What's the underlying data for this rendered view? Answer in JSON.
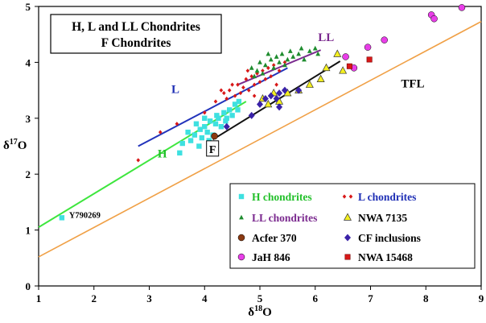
{
  "chart_data": {
    "type": "scatter",
    "title_lines": [
      "H, L and LL Chondrites",
      "F Chondrites"
    ],
    "xlabel": "δ18O",
    "ylabel": "δ17O",
    "xlim": [
      1,
      9
    ],
    "ylim": [
      0,
      5
    ],
    "xticks": [
      1,
      2,
      3,
      4,
      5,
      6,
      7,
      8,
      9
    ],
    "yticks": [
      0,
      1,
      2,
      3,
      4,
      5
    ],
    "grid": false,
    "legend_position": "bottom-right",
    "annotations": [
      {
        "text": "TFL",
        "x": 7.55,
        "y": 3.55,
        "color": "#000000"
      },
      {
        "text": "LL",
        "x": 6.05,
        "y": 4.38,
        "color": "#7b2a8f"
      },
      {
        "text": "L",
        "x": 3.4,
        "y": 3.45,
        "color": "#1f2fb5"
      },
      {
        "text": "H",
        "x": 3.15,
        "y": 2.3,
        "color": "#22c02a"
      },
      {
        "text": "Y790269",
        "x": 1.55,
        "y": 1.22,
        "color": "#000000"
      }
    ],
    "f_label": {
      "text": "F",
      "x": 4.05,
      "y": 2.38
    },
    "lines": [
      {
        "name": "TFL",
        "color": "#f0a046",
        "x": [
          1,
          9
        ],
        "y": [
          0.52,
          4.73
        ]
      },
      {
        "name": "H trend",
        "color": "#3ee63e",
        "x": [
          1,
          4.75
        ],
        "y": [
          1.05,
          3.3
        ]
      },
      {
        "name": "L trend",
        "color": "#2233bb",
        "x": [
          2.8,
          5.5
        ],
        "y": [
          2.5,
          3.9
        ]
      },
      {
        "name": "LL trend",
        "color": "#7b2a8f",
        "x": [
          4.6,
          6.1
        ],
        "y": [
          3.6,
          4.22
        ]
      },
      {
        "name": "F trend",
        "color": "#111111",
        "x": [
          4.15,
          6.45
        ],
        "y": [
          2.62,
          4.02
        ]
      }
    ],
    "series": [
      {
        "name": "H chondrites",
        "marker": "square",
        "color": "#3ee0e0",
        "points": [
          [
            1.42,
            1.22
          ],
          [
            3.55,
            2.38
          ],
          [
            3.6,
            2.55
          ],
          [
            3.75,
            2.6
          ],
          [
            3.82,
            2.7
          ],
          [
            3.9,
            2.5
          ],
          [
            3.92,
            2.8
          ],
          [
            3.95,
            2.65
          ],
          [
            4.0,
            2.85
          ],
          [
            4.05,
            2.75
          ],
          [
            4.1,
            2.95
          ],
          [
            4.15,
            2.7
          ],
          [
            4.2,
            2.9
          ],
          [
            4.25,
            3.0
          ],
          [
            4.3,
            2.85
          ],
          [
            4.35,
            3.1
          ],
          [
            4.4,
            3.0
          ],
          [
            4.45,
            3.15
          ],
          [
            4.5,
            3.05
          ],
          [
            4.55,
            3.25
          ],
          [
            4.6,
            3.15
          ],
          [
            4.62,
            3.3
          ],
          [
            3.7,
            2.75
          ],
          [
            3.85,
            2.9
          ],
          [
            4.0,
            3.0
          ],
          [
            4.08,
            2.6
          ],
          [
            4.22,
            3.05
          ],
          [
            4.38,
            2.95
          ]
        ]
      },
      {
        "name": "L chondrites",
        "marker": "diamond-small",
        "color": "#d81818",
        "points": [
          [
            2.8,
            2.25
          ],
          [
            3.2,
            2.75
          ],
          [
            3.5,
            2.9
          ],
          [
            4.0,
            3.1
          ],
          [
            4.2,
            3.3
          ],
          [
            4.35,
            3.45
          ],
          [
            4.45,
            3.5
          ],
          [
            4.55,
            3.4
          ],
          [
            4.6,
            3.6
          ],
          [
            4.7,
            3.55
          ],
          [
            4.75,
            3.7
          ],
          [
            4.8,
            3.5
          ],
          [
            4.85,
            3.75
          ],
          [
            4.9,
            3.6
          ],
          [
            4.95,
            3.8
          ],
          [
            5.0,
            3.65
          ],
          [
            5.05,
            3.85
          ],
          [
            5.1,
            3.7
          ],
          [
            5.15,
            3.9
          ],
          [
            5.2,
            3.75
          ],
          [
            5.25,
            3.95
          ],
          [
            5.35,
            3.85
          ],
          [
            5.45,
            4.0
          ],
          [
            4.3,
            3.5
          ],
          [
            4.5,
            3.6
          ],
          [
            4.65,
            3.45
          ],
          [
            4.9,
            3.4
          ],
          [
            5.3,
            3.6
          ],
          [
            4.4,
            3.35
          ],
          [
            4.78,
            3.85
          ]
        ]
      },
      {
        "name": "LL chondrites",
        "marker": "triangle-small",
        "color": "#1e8c2e",
        "points": [
          [
            4.85,
            3.9
          ],
          [
            4.95,
            3.85
          ],
          [
            5.0,
            4.0
          ],
          [
            5.05,
            3.8
          ],
          [
            5.1,
            3.95
          ],
          [
            5.2,
            4.05
          ],
          [
            5.25,
            3.9
          ],
          [
            5.3,
            4.1
          ],
          [
            5.35,
            4.0
          ],
          [
            5.4,
            4.15
          ],
          [
            5.5,
            4.05
          ],
          [
            5.55,
            4.2
          ],
          [
            5.6,
            4.1
          ],
          [
            5.7,
            4.15
          ],
          [
            5.75,
            4.25
          ],
          [
            5.8,
            4.05
          ],
          [
            5.9,
            4.2
          ],
          [
            6.0,
            4.25
          ],
          [
            6.05,
            4.15
          ],
          [
            5.45,
            3.95
          ],
          [
            5.15,
            4.15
          ],
          [
            4.9,
            3.75
          ]
        ]
      },
      {
        "name": "NWA 7135",
        "marker": "triangle",
        "color": "#f5f020",
        "points": [
          [
            5.05,
            3.35
          ],
          [
            5.15,
            3.25
          ],
          [
            5.25,
            3.45
          ],
          [
            5.35,
            3.3
          ],
          [
            5.5,
            3.45
          ],
          [
            5.7,
            3.5
          ],
          [
            5.9,
            3.6
          ],
          [
            6.1,
            3.7
          ],
          [
            6.2,
            3.9
          ],
          [
            6.4,
            4.15
          ],
          [
            6.5,
            3.85
          ]
        ]
      },
      {
        "name": "Acfer 370",
        "marker": "circle",
        "color": "#8b3a12",
        "points": [
          [
            4.18,
            2.68
          ]
        ]
      },
      {
        "name": "CF inclusions",
        "marker": "diamond",
        "color": "#3a22a8",
        "points": [
          [
            4.4,
            2.85
          ],
          [
            4.85,
            3.05
          ],
          [
            5.0,
            3.25
          ],
          [
            5.1,
            3.35
          ],
          [
            5.2,
            3.4
          ],
          [
            5.3,
            3.35
          ],
          [
            5.35,
            3.45
          ],
          [
            5.45,
            3.5
          ],
          [
            5.7,
            3.5
          ],
          [
            5.35,
            3.2
          ]
        ]
      },
      {
        "name": "JaH 846",
        "marker": "circle",
        "color": "#e83ee8",
        "points": [
          [
            6.55,
            4.1
          ],
          [
            6.7,
            3.9
          ],
          [
            6.95,
            4.27
          ],
          [
            7.25,
            4.4
          ],
          [
            8.1,
            4.85
          ],
          [
            8.15,
            4.78
          ],
          [
            8.65,
            4.98
          ]
        ]
      },
      {
        "name": "NWA 15468",
        "marker": "square",
        "color": "#d81818",
        "points": [
          [
            6.62,
            3.93
          ],
          [
            6.98,
            4.05
          ]
        ]
      }
    ],
    "legend": [
      {
        "name": "H chondrites",
        "color": "#22c02a",
        "marker": "square",
        "marker_color": "#3ee0e0"
      },
      {
        "name": "L chondrites",
        "color": "#1f2fb5",
        "marker": "diamond-small",
        "marker_color": "#d81818"
      },
      {
        "name": "LL chondrites",
        "color": "#7b2a8f",
        "marker": "triangle-small",
        "marker_color": "#1e8c2e"
      },
      {
        "name": "NWA 7135",
        "color": "#000000",
        "marker": "triangle",
        "marker_color": "#f5f020"
      },
      {
        "name": "Acfer 370",
        "color": "#000000",
        "marker": "circle",
        "marker_color": "#8b3a12"
      },
      {
        "name": "CF inclusions",
        "color": "#000000",
        "marker": "diamond",
        "marker_color": "#3a22a8"
      },
      {
        "name": "JaH 846",
        "color": "#000000",
        "marker": "circle",
        "marker_color": "#e83ee8"
      },
      {
        "name": "NWA 15468",
        "color": "#000000",
        "marker": "square",
        "marker_color": "#d81818"
      }
    ]
  }
}
